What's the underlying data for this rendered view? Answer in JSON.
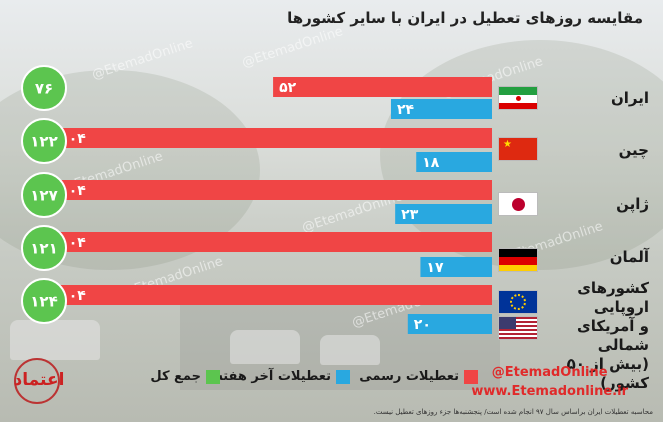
{
  "watermark": "@EtemadOnline",
  "footnote": "محاسبه تعطیلات ایران براساس سال ۹۷ انجام شده است/ پنجشنبه‌ها جزء روزهای تعطیل نیست.",
  "branding": {
    "handle": "@EtemadOnline",
    "url": "www.Etemadonline.ir",
    "logo_text": "اعتماد"
  },
  "chart_data": {
    "type": "bar",
    "title": "مقایسه روزهای تعطیل در ایران با سایر کشورها",
    "categories": [
      "ایران",
      "چین",
      "ژاپن",
      "آلمان",
      "کشورهای اروپایی و آمریکای شمالی (بیش از ۵۰ کشور)"
    ],
    "category_lines": [
      [],
      [],
      [],
      [],
      [
        "کشورهای اروپایی",
        "و آمریکای شمالی",
        "(بیش از ۵۰ کشور)"
      ]
    ],
    "legend": [
      "تعطیلات رسمی",
      "تعطیلات آخر هفته",
      "جمع کل"
    ],
    "series": [
      {
        "name": "تعطیلات رسمی",
        "values": [
          52,
          104,
          104,
          104,
          104
        ],
        "labels": [
          "۵۲",
          "۱۰۴",
          "۱۰۴",
          "۱۰۴",
          "۱۰۴"
        ],
        "color": "#f04545"
      },
      {
        "name": "تعطیلات آخر هفته",
        "values": [
          24,
          18,
          23,
          17,
          20
        ],
        "labels": [
          "۲۴",
          "۱۸",
          "۲۳",
          "۱۷",
          "۲۰"
        ],
        "color": "#29a8e0"
      }
    ],
    "totals": {
      "name": "جمع کل",
      "values": [
        76,
        122,
        127,
        121,
        124
      ],
      "labels": [
        "۷۶",
        "۱۲۲",
        "۱۲۷",
        "۱۲۱",
        "۱۲۴"
      ],
      "color": "#5cc54f"
    },
    "orientation": "horizontal-rtl"
  }
}
